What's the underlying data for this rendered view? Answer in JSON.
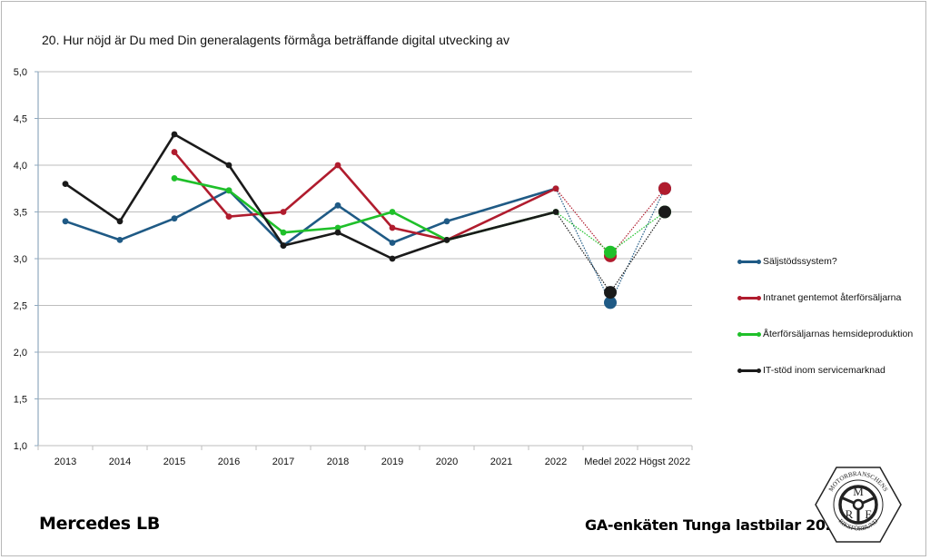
{
  "page": {
    "brand": "Mercedes LB",
    "survey_title": "GA-enkäten Tunga lastbilar 2022",
    "logo": {
      "name": "mrf-logo",
      "top_text": "MOTORBRANSCHENS",
      "bottom_text": "RIKSFÖRBUND",
      "letters": [
        "M",
        "R",
        "F"
      ]
    }
  },
  "chart_data": {
    "type": "line",
    "title": "20. Hur nöjd är Du med Din generalagents förmåga beträffande digital utvecking av",
    "xlabel": "",
    "ylabel": "",
    "categories": [
      "2013",
      "2014",
      "2015",
      "2016",
      "2017",
      "2018",
      "2019",
      "2020",
      "2021",
      "2022",
      "Medel 2022",
      "Högst 2022"
    ],
    "ylim": [
      1.0,
      5.0
    ],
    "yticks": [
      "1,0",
      "1,5",
      "2,0",
      "2,5",
      "3,0",
      "3,5",
      "4,0",
      "4,5",
      "5,0"
    ],
    "ytick_values": [
      1.0,
      1.5,
      2.0,
      2.5,
      3.0,
      3.5,
      4.0,
      4.5,
      5.0
    ],
    "grid": true,
    "legend_position": "right",
    "series": [
      {
        "name": "Säljstödssystem?",
        "color": "#1f5a85",
        "values": [
          3.4,
          3.2,
          3.43,
          3.73,
          3.14,
          3.57,
          3.17,
          3.4,
          null,
          3.75
        ],
        "medel_2022": 2.53,
        "hogst_2022": 3.75
      },
      {
        "name": "Intranet gentemot återförsäljarna",
        "color": "#b01c2e",
        "values": [
          null,
          null,
          4.14,
          3.45,
          3.5,
          4.0,
          3.33,
          3.2,
          null,
          3.75
        ],
        "medel_2022": 3.03,
        "hogst_2022": 3.75
      },
      {
        "name": "Återförsäljarnas hemsideproduktion",
        "color": "#1fc02a",
        "values": [
          null,
          null,
          3.86,
          3.73,
          3.28,
          3.33,
          3.5,
          3.2,
          null,
          3.5
        ],
        "medel_2022": 3.07,
        "hogst_2022": 3.5
      },
      {
        "name": "IT-stöd inom servicemarknad",
        "color": "#1a1a1a",
        "values": [
          3.8,
          3.4,
          4.33,
          4.0,
          3.14,
          3.28,
          3.0,
          3.2,
          null,
          3.5
        ],
        "medel_2022": 2.64,
        "hogst_2022": 3.5
      }
    ]
  }
}
